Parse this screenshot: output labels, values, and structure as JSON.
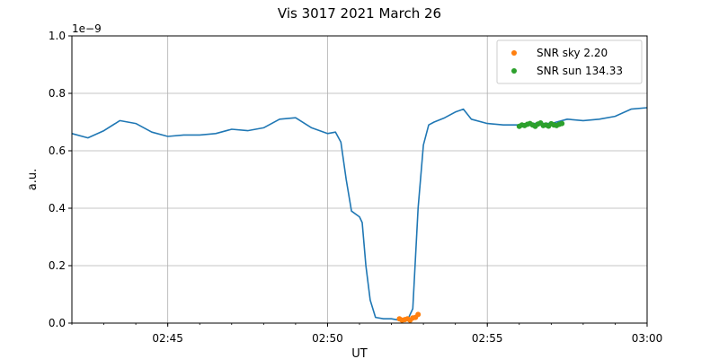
{
  "chart_data": {
    "type": "line",
    "title": "Vis 3017 2021 March 26",
    "xlabel": "UT",
    "ylabel": "a.u.",
    "y_offset_label": "1e−9",
    "x_unit": "time UT (HH:MM)",
    "xlim": [
      "02:42:00",
      "03:00:00"
    ],
    "ylim": [
      0.0,
      1.0
    ],
    "y_scale": "1e-9",
    "x_ticks": [
      {
        "t": "02:45:00",
        "label": "02:45"
      },
      {
        "t": "02:50:00",
        "label": "02:50"
      },
      {
        "t": "02:55:00",
        "label": "02:55"
      },
      {
        "t": "03:00:00",
        "label": "03:00"
      }
    ],
    "y_ticks": [
      {
        "v": 0.0,
        "label": "0.0"
      },
      {
        "v": 0.2,
        "label": "0.2"
      },
      {
        "v": 0.4,
        "label": "0.4"
      },
      {
        "v": 0.6,
        "label": "0.6"
      },
      {
        "v": 0.8,
        "label": "0.8"
      },
      {
        "v": 1.0,
        "label": "1.0"
      }
    ],
    "grid": true,
    "legend_position": "top-right",
    "series": [
      {
        "kind": "line",
        "color": "#1f77b4",
        "x": [
          "02:42:00",
          "02:42:30",
          "02:43:00",
          "02:43:30",
          "02:44:00",
          "02:44:30",
          "02:45:00",
          "02:45:30",
          "02:46:00",
          "02:46:30",
          "02:47:00",
          "02:47:30",
          "02:48:00",
          "02:48:30",
          "02:49:00",
          "02:49:30",
          "02:50:00",
          "02:50:15",
          "02:50:25",
          "02:50:35",
          "02:50:45",
          "02:51:00",
          "02:51:05",
          "02:51:12",
          "02:51:20",
          "02:51:30",
          "02:51:45",
          "02:52:00",
          "02:52:15",
          "02:52:30",
          "02:52:40",
          "02:52:50",
          "02:53:00",
          "02:53:10",
          "02:53:20",
          "02:53:40",
          "02:54:00",
          "02:54:15",
          "02:54:30",
          "02:55:00",
          "02:55:30",
          "02:56:00",
          "02:56:30",
          "02:57:00",
          "02:57:30",
          "02:58:00",
          "02:58:30",
          "02:59:00",
          "02:59:30",
          "03:00:00"
        ],
        "y": [
          0.66,
          0.645,
          0.67,
          0.705,
          0.695,
          0.665,
          0.65,
          0.655,
          0.655,
          0.66,
          0.675,
          0.67,
          0.68,
          0.71,
          0.715,
          0.68,
          0.66,
          0.665,
          0.63,
          0.5,
          0.39,
          0.37,
          0.35,
          0.2,
          0.08,
          0.02,
          0.015,
          0.015,
          0.01,
          0.01,
          0.05,
          0.4,
          0.62,
          0.69,
          0.7,
          0.715,
          0.735,
          0.745,
          0.71,
          0.695,
          0.69,
          0.69,
          0.695,
          0.695,
          0.71,
          0.705,
          0.71,
          0.72,
          0.745,
          0.75
        ]
      },
      {
        "kind": "scatter",
        "name": "SNR sky 2.20",
        "color": "#ff7f0e",
        "x": [
          "02:52:15",
          "02:52:20",
          "02:52:25",
          "02:52:30",
          "02:52:35",
          "02:52:40",
          "02:52:45",
          "02:52:50"
        ],
        "y": [
          0.015,
          0.01,
          0.012,
          0.015,
          0.01,
          0.018,
          0.02,
          0.03
        ]
      },
      {
        "kind": "scatter",
        "name": "SNR sun 134.33",
        "color": "#2ca02c",
        "x": [
          "02:56:00",
          "02:56:05",
          "02:56:10",
          "02:56:15",
          "02:56:20",
          "02:56:25",
          "02:56:30",
          "02:56:35",
          "02:56:40",
          "02:56:45",
          "02:56:50",
          "02:56:55",
          "02:57:00",
          "02:57:05",
          "02:57:10",
          "02:57:15",
          "02:57:20"
        ],
        "y": [
          0.685,
          0.69,
          0.688,
          0.692,
          0.695,
          0.69,
          0.685,
          0.693,
          0.697,
          0.688,
          0.69,
          0.686,
          0.694,
          0.69,
          0.688,
          0.692,
          0.695
        ]
      }
    ]
  }
}
